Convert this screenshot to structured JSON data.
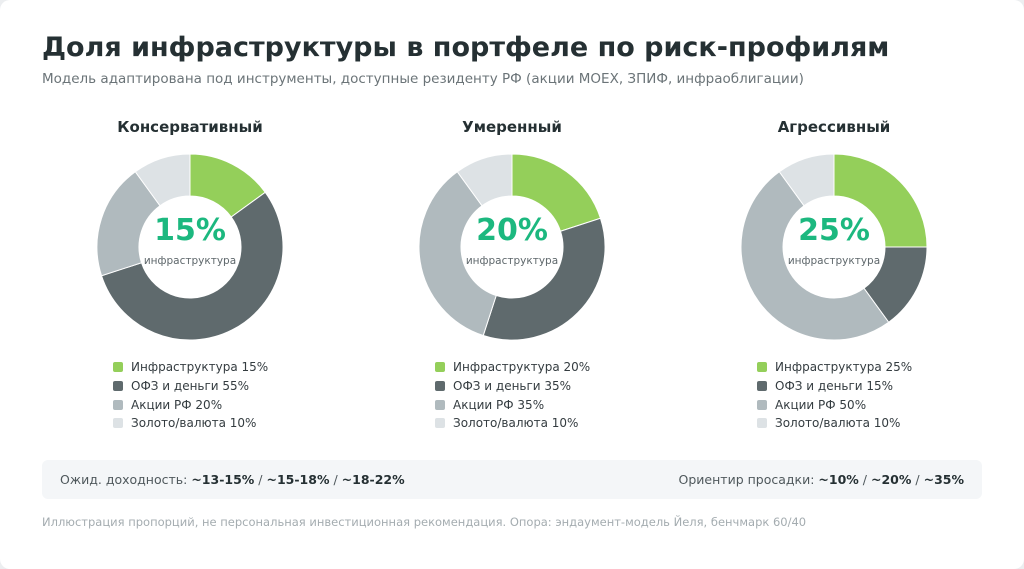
{
  "title": "Доля инфраструктуры в портфеле по риск-профилям",
  "subtitle": "Модель адаптирована под инструменты, доступные резиденту РФ (акции MOEX, ЗПИФ, инфраоблигации)",
  "colors": {
    "infra": "#94cf5a",
    "ofz": "#5f6a6d",
    "stocks": "#b0babe",
    "gold": "#dde2e5",
    "accent": "#1cb87f"
  },
  "chart_data": [
    {
      "type": "pie",
      "title": "Консервативный",
      "center_value": "15%",
      "center_label": "инфраструктура",
      "categories": [
        "Инфраструктура",
        "ОФЗ и деньги",
        "Акции РФ",
        "Золото/валюта"
      ],
      "values": [
        15,
        55,
        20,
        10
      ],
      "legend_labels": [
        "Инфраструктура 15%",
        "ОФЗ и деньги 55%",
        "Акции РФ 20%",
        "Золото/валюта 10%"
      ]
    },
    {
      "type": "pie",
      "title": "Умеренный",
      "center_value": "20%",
      "center_label": "инфраструктура",
      "categories": [
        "Инфраструктура",
        "ОФЗ и деньги",
        "Акции РФ",
        "Золото/валюта"
      ],
      "values": [
        20,
        35,
        35,
        10
      ],
      "legend_labels": [
        "Инфраструктура 20%",
        "ОФЗ и деньги 35%",
        "Акции РФ 35%",
        "Золото/валюта 10%"
      ]
    },
    {
      "type": "pie",
      "title": "Агрессивный",
      "center_value": "25%",
      "center_label": "инфраструктура",
      "categories": [
        "Инфраструктура",
        "ОФЗ и деньги",
        "Акции РФ",
        "Золото/валюта"
      ],
      "values": [
        25,
        15,
        50,
        10
      ],
      "legend_labels": [
        "Инфраструктура 25%",
        "ОФЗ и деньги 15%",
        "Акции РФ 50%",
        "Золото/валюта 10%"
      ]
    }
  ],
  "summary": {
    "return_label": "Ожид. доходность:",
    "returns": [
      "~13-15%",
      "~15-18%",
      "~18-22%"
    ],
    "drawdown_label": "Ориентир просадки:",
    "drawdowns": [
      "~10%",
      "~20%",
      "~35%"
    ],
    "separator": "/"
  },
  "footnote": "Иллюстрация пропорций, не персональная инвестиционная рекомендация. Опора: эндаумент-модель Йеля, бенчмарк 60/40"
}
